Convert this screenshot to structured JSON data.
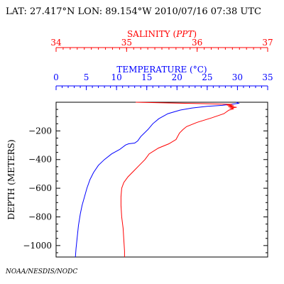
{
  "header": {
    "text": "LAT: 27.417°N LON: 89.154°W 2010/07/16 07:38 UTC"
  },
  "footer": {
    "credit": "NOAA/NESDIS/NODC"
  },
  "chart_data": {
    "type": "line",
    "x_axes": [
      {
        "id": "salinity",
        "label_prefix": "SALINITY (",
        "label_unit": "PPT",
        "label_suffix": ")",
        "range": [
          34,
          37
        ],
        "ticks": [
          34,
          35,
          36,
          37
        ],
        "minor_step": 0.1,
        "color": "#ff0000"
      },
      {
        "id": "temperature",
        "label": "TEMPERATURE (°C)",
        "range": [
          0,
          35
        ],
        "ticks": [
          0,
          5,
          10,
          15,
          20,
          25,
          30,
          35
        ],
        "minor_step": 1,
        "color": "#0000ff"
      }
    ],
    "y_axis": {
      "label": "DEPTH (METERS)",
      "range": [
        0,
        -1080
      ],
      "ticks": [
        -200,
        -400,
        -600,
        -800,
        -1000
      ],
      "tick_labels": [
        "−200",
        "−400",
        "−600",
        "−800",
        "−1000"
      ],
      "minor_step": 50
    },
    "series": [
      {
        "axis": "temperature",
        "color": "#0000ff",
        "points": [
          [
            29.8,
            0
          ],
          [
            30.2,
            -8
          ],
          [
            29.0,
            -14
          ],
          [
            27.5,
            -22
          ],
          [
            25.0,
            -28
          ],
          [
            22.5,
            -40
          ],
          [
            20.5,
            -55
          ],
          [
            18.5,
            -80
          ],
          [
            17.0,
            -115
          ],
          [
            16.0,
            -150
          ],
          [
            15.2,
            -190
          ],
          [
            14.0,
            -240
          ],
          [
            13.5,
            -270
          ],
          [
            13.0,
            -285
          ],
          [
            12.0,
            -290
          ],
          [
            11.5,
            -298
          ],
          [
            10.5,
            -330
          ],
          [
            9.2,
            -360
          ],
          [
            8.0,
            -400
          ],
          [
            7.0,
            -440
          ],
          [
            6.2,
            -490
          ],
          [
            5.6,
            -540
          ],
          [
            5.1,
            -600
          ],
          [
            4.7,
            -660
          ],
          [
            4.3,
            -720
          ],
          [
            4.0,
            -780
          ],
          [
            3.7,
            -860
          ],
          [
            3.5,
            -940
          ],
          [
            3.3,
            -1020
          ],
          [
            3.2,
            -1080
          ]
        ]
      },
      {
        "axis": "salinity",
        "color": "#ff0000",
        "points": [
          [
            35.13,
            0
          ],
          [
            35.6,
            -5
          ],
          [
            36.1,
            -10
          ],
          [
            36.5,
            -15
          ],
          [
            36.42,
            -20
          ],
          [
            36.52,
            -25
          ],
          [
            36.44,
            -30
          ],
          [
            36.56,
            -35
          ],
          [
            36.46,
            -40
          ],
          [
            36.52,
            -45
          ],
          [
            36.45,
            -55
          ],
          [
            36.38,
            -80
          ],
          [
            36.2,
            -110
          ],
          [
            36.0,
            -140
          ],
          [
            35.85,
            -170
          ],
          [
            35.8,
            -190
          ],
          [
            35.75,
            -215
          ],
          [
            35.7,
            -260
          ],
          [
            35.6,
            -290
          ],
          [
            35.45,
            -320
          ],
          [
            35.32,
            -360
          ],
          [
            35.26,
            -400
          ],
          [
            35.18,
            -440
          ],
          [
            35.1,
            -480
          ],
          [
            35.02,
            -520
          ],
          [
            34.96,
            -560
          ],
          [
            34.93,
            -600
          ],
          [
            34.92,
            -660
          ],
          [
            34.92,
            -720
          ],
          [
            34.93,
            -800
          ],
          [
            34.95,
            -880
          ],
          [
            34.96,
            -960
          ],
          [
            34.97,
            -1040
          ],
          [
            34.97,
            -1080
          ]
        ]
      }
    ]
  }
}
